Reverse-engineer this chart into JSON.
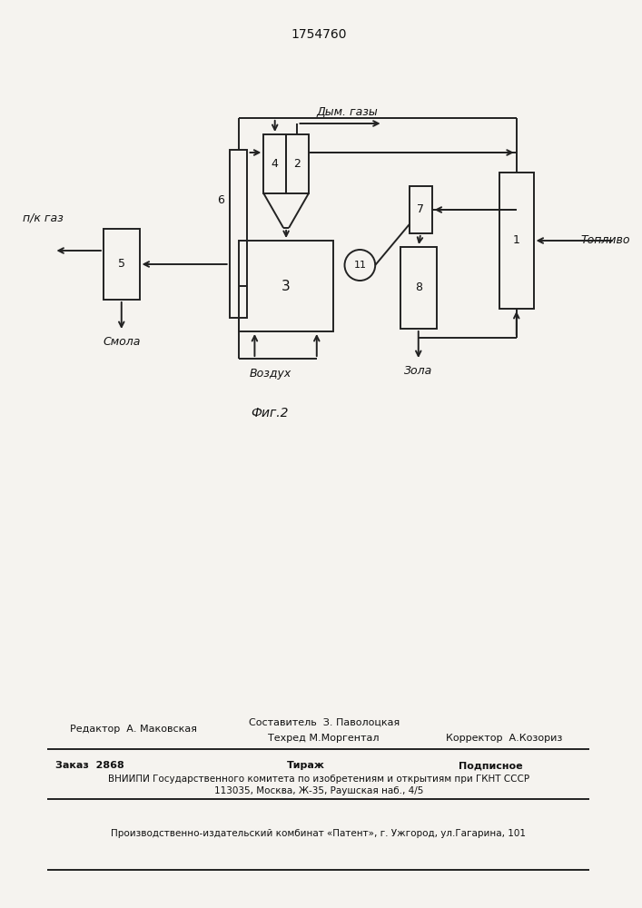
{
  "patent_number": "1754760",
  "fig_label": "Фиг.2",
  "bg": "#f5f3ef",
  "lc": "#222222",
  "labels": {
    "dym_gazy": "Дым. газы",
    "pk_gaz": "п/к газ",
    "smola": "Смола",
    "vozduh": "Воздух",
    "zola": "Зола",
    "toplivo": "Топливо"
  },
  "footer": {
    "line1_left": "Редактор  А. Маковская",
    "line1_center": "Составитель  З. Паволоцкая",
    "line2_center": "Техред М.Моргентал",
    "line2_right": "Корректор  А.Козориз",
    "line3_left": "Заказ  2868",
    "line3_center": "Тираж",
    "line3_right": "Подписное",
    "line4": "ВНИИПИ Государственного комитета по изобретениям и открытиям при ГКНТ СССР",
    "line5": "113035, Москва, Ж-35, Раушская наб., 4/5",
    "line6": "Производственно-издательский комбинат «Патент», г. Ужгород, ул.Гагарина, 101"
  }
}
